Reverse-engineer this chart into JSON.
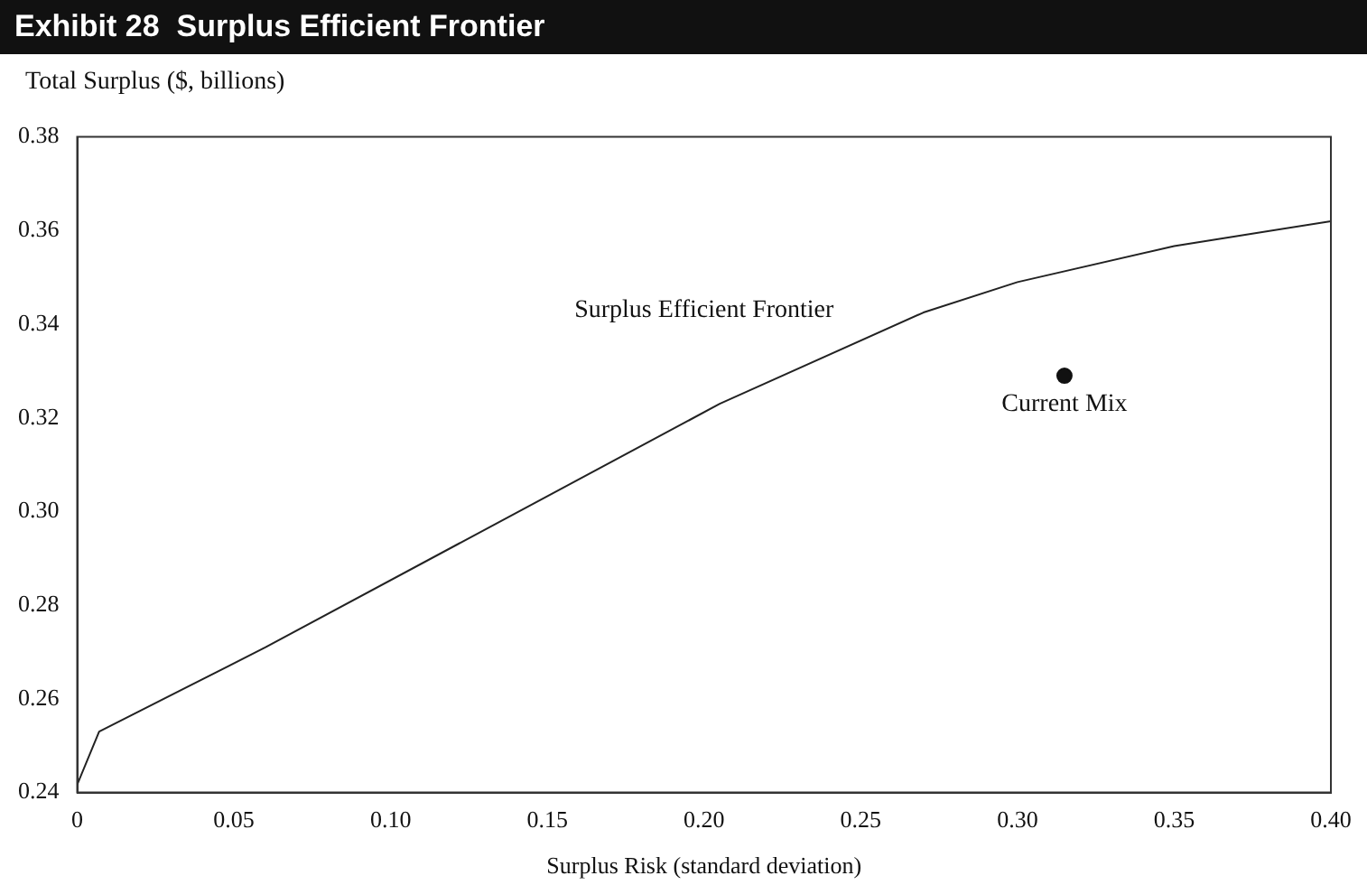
{
  "chart_data": {
    "type": "line",
    "title": "Exhibit 28  Surplus Efficient Frontier",
    "ylabel": "Total Surplus ($, billions)",
    "xlabel": "Surplus Risk (standard deviation)",
    "series": [
      {
        "color": "#222222",
        "x": [
          0,
          0.007,
          0.06,
          0.205,
          0.27,
          0.3,
          0.35,
          0.4
        ],
        "values": [
          0.2417,
          0.253,
          0.271,
          0.323,
          0.3425,
          0.349,
          0.3567,
          0.362
        ],
        "marker": "none"
      },
      {
        "type": "scatter",
        "color": "#111111",
        "x": [
          0.315
        ],
        "values": [
          0.329
        ],
        "marker": "circle"
      }
    ],
    "annotations": [
      "Surplus Efficient Frontier",
      {
        "text": "Current Mix",
        "x": 0.315,
        "y": 0.329
      }
    ],
    "xlim": [
      0,
      0.4
    ],
    "xticks": [
      {
        "value": 0,
        "label": "0"
      },
      0.05,
      {
        "value": 0.1,
        "label": "0.10"
      },
      0.15,
      {
        "value": 0.2,
        "label": "0.20"
      },
      0.25,
      {
        "value": 0.3,
        "label": "0.30"
      },
      0.35,
      {
        "value": 0.4,
        "label": "0.40"
      }
    ],
    "ylim": [
      0.24,
      0.38
    ],
    "yticks": [
      0.24,
      0.26,
      0.28,
      {
        "value": 0.3,
        "label": "0.30"
      },
      0.32,
      0.34,
      0.36,
      0.38
    ],
    "grid": false,
    "legend": false
  }
}
